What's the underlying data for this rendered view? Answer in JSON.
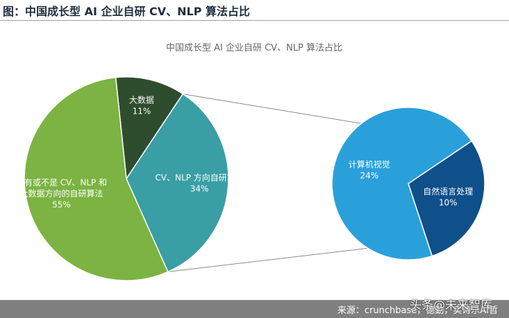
{
  "figure": {
    "label": "图：中国成长型 AI 企业自研 CV、NLP 算法占比",
    "source": "来源：crunchbase，德勤，实诗乐AI哲",
    "watermark": "头条@未来智库"
  },
  "colors": {
    "green": "#7cb342",
    "darkgreen": "#2e4d2e",
    "teal": "#3a9ea5",
    "lightblue": "#2aa0db",
    "navy": "#0f4f8a",
    "connector": "#8a8a8a"
  },
  "chart_data": {
    "type": "pie",
    "title": "中国成长型 AI 企业自研 CV、NLP 算法占比",
    "main_pie": {
      "slices": [
        {
          "label": "大数据",
          "value": 11,
          "display": "11%",
          "color": "darkgreen"
        },
        {
          "label": "CV、NLP 方向自研算法",
          "value": 34,
          "display": "34%",
          "color": "teal"
        },
        {
          "label": "没有或不是 CV、NLP 和大数据方向的自研算法",
          "lines": [
            "没有或不是 CV、NLP 和",
            "大数据方向的自研算法"
          ],
          "value": 55,
          "display": "55%",
          "color": "green"
        }
      ]
    },
    "secondary_pie": {
      "parent_label": "CV、NLP 方向自研算法",
      "slices": [
        {
          "label": "计算机视觉",
          "value": 24,
          "display": "24%",
          "color": "lightblue"
        },
        {
          "label": "自然语言处理",
          "value": 10,
          "display": "10%",
          "color": "navy"
        }
      ]
    }
  }
}
